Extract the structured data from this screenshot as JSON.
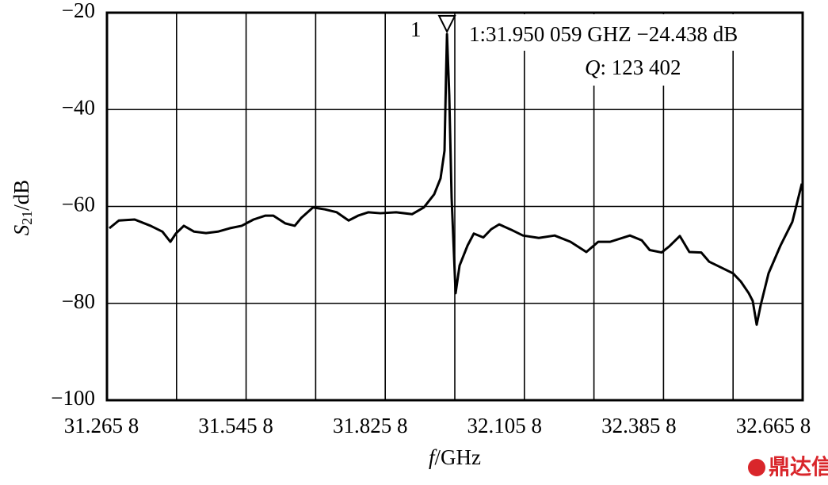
{
  "chart_data": {
    "type": "line",
    "xlabel": [
      "f",
      "/GHz"
    ],
    "ylabel": [
      "S",
      "21",
      "/dB"
    ],
    "marker_label": "1",
    "marker_readout": "1:31.950 059 GHZ −24.438 dB",
    "q_symbol": "Q",
    "q_readout": ":  123  402",
    "watermark": "鼎达信",
    "marker": {
      "x": 31.950059,
      "y": -24.438
    },
    "xlim": [
      31.2658,
      32.6658
    ],
    "ylim": [
      -100,
      -20
    ],
    "xticks": [
      {
        "value": 31.2658,
        "label": "31.265 8"
      },
      {
        "value": 31.5458,
        "label": "31.545 8"
      },
      {
        "value": 31.8258,
        "label": "31.825 8"
      },
      {
        "value": 32.1058,
        "label": "32.105 8"
      },
      {
        "value": 32.3858,
        "label": "32.385 8"
      },
      {
        "value": 32.6658,
        "label": "32.665 8"
      }
    ],
    "xgrid": [
      31.4058,
      31.6858,
      31.9658,
      32.2458,
      32.5258
    ],
    "yticks": [
      {
        "value": -100,
        "label": "−100"
      },
      {
        "value": -80,
        "label": "−80"
      },
      {
        "value": -60,
        "label": "−60"
      },
      {
        "value": -40,
        "label": "−40"
      },
      {
        "value": -20,
        "label": "−20"
      }
    ],
    "grid": true,
    "series": [
      {
        "color": "#000000",
        "x": [
          31.2706,
          31.2897,
          31.3216,
          31.3535,
          31.3774,
          31.3934,
          31.4045,
          31.4205,
          31.4412,
          31.4651,
          31.489,
          31.5129,
          31.5369,
          31.5608,
          31.5847,
          31.6006,
          31.6246,
          31.6437,
          31.6565,
          31.6804,
          31.7043,
          31.7282,
          31.7521,
          31.7713,
          31.792,
          31.8159,
          31.8478,
          31.8797,
          31.9036,
          31.9243,
          31.9371,
          31.9451,
          31.948,
          31.950059,
          31.9546,
          31.9594,
          31.9674,
          31.9754,
          31.9913,
          32.0041,
          32.0232,
          32.0391,
          32.0551,
          32.079,
          32.1029,
          32.1348,
          32.1667,
          32.1986,
          32.2305,
          32.2544,
          32.2783,
          32.3182,
          32.3421,
          32.358,
          32.382,
          32.3979,
          32.4186,
          32.4378,
          32.4617,
          32.4776,
          32.4936,
          32.5095,
          32.5255,
          32.5414,
          32.5573,
          32.5653,
          32.5733,
          32.5813,
          32.5972,
          32.6211,
          32.645,
          32.6642
        ],
        "values": [
          -64.5,
          -62.9,
          -62.7,
          -64,
          -65.2,
          -67.3,
          -65.6,
          -64,
          -65.2,
          -65.5,
          -65.2,
          -64.5,
          -64,
          -62.7,
          -61.9,
          -61.9,
          -63.5,
          -64,
          -62.4,
          -60.2,
          -60.6,
          -61.2,
          -62.9,
          -61.9,
          -61.2,
          -61.4,
          -61.2,
          -61.6,
          -60.2,
          -57.5,
          -54.2,
          -48.5,
          -33.7,
          -24.438,
          -37,
          -58.3,
          -77.9,
          -72.2,
          -68.1,
          -65.6,
          -66.4,
          -64.7,
          -63.7,
          -64.8,
          -66,
          -66.5,
          -66,
          -67.3,
          -69.4,
          -67.3,
          -67.3,
          -66,
          -67,
          -69,
          -69.5,
          -68.2,
          -66.1,
          -69.4,
          -69.5,
          -71.4,
          -72.2,
          -73,
          -73.8,
          -75.5,
          -77.9,
          -79.5,
          -84.4,
          -80.4,
          -73.8,
          -68.1,
          -63.2,
          -55.3
        ]
      }
    ]
  }
}
